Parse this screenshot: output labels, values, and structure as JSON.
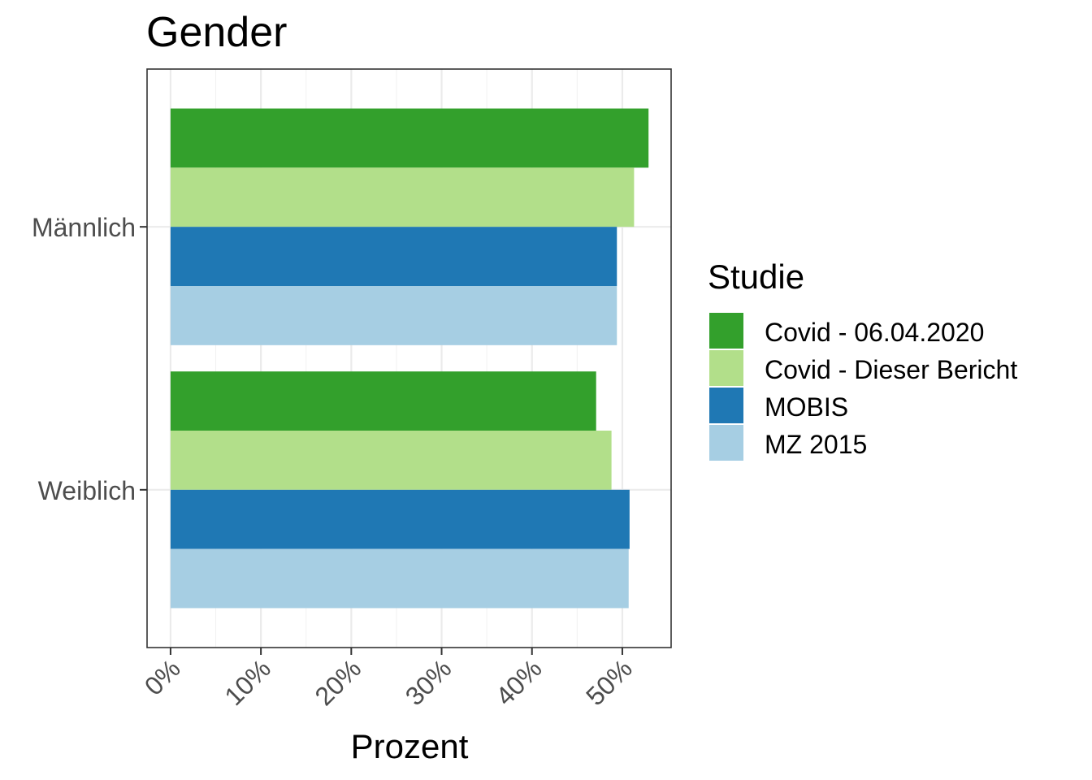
{
  "chart_data": {
    "type": "bar",
    "orientation": "horizontal",
    "title": "Gender",
    "xlabel": "Prozent",
    "ylabel": "",
    "categories": [
      "Männlich",
      "Weiblich"
    ],
    "series": [
      {
        "name": "Covid - 06.04.2020",
        "color": "#33a02c",
        "values": [
          52.9,
          47.1
        ]
      },
      {
        "name": "Covid - Dieser Bericht",
        "color": "#b2df8a",
        "values": [
          51.3,
          48.8
        ]
      },
      {
        "name": "MOBIS",
        "color": "#1f78b4",
        "values": [
          49.4,
          50.8
        ]
      },
      {
        "name": "MZ 2015",
        "color": "#a6cee3",
        "values": [
          49.4,
          50.7
        ]
      }
    ],
    "xlim": [
      -2.6,
      55.4
    ],
    "xticks": [
      0,
      10,
      20,
      30,
      40,
      50
    ],
    "xtick_labels": [
      "0%",
      "10%",
      "20%",
      "30%",
      "40%",
      "50%"
    ],
    "grid": true,
    "legend": {
      "title": "Studie",
      "position": "right"
    }
  }
}
